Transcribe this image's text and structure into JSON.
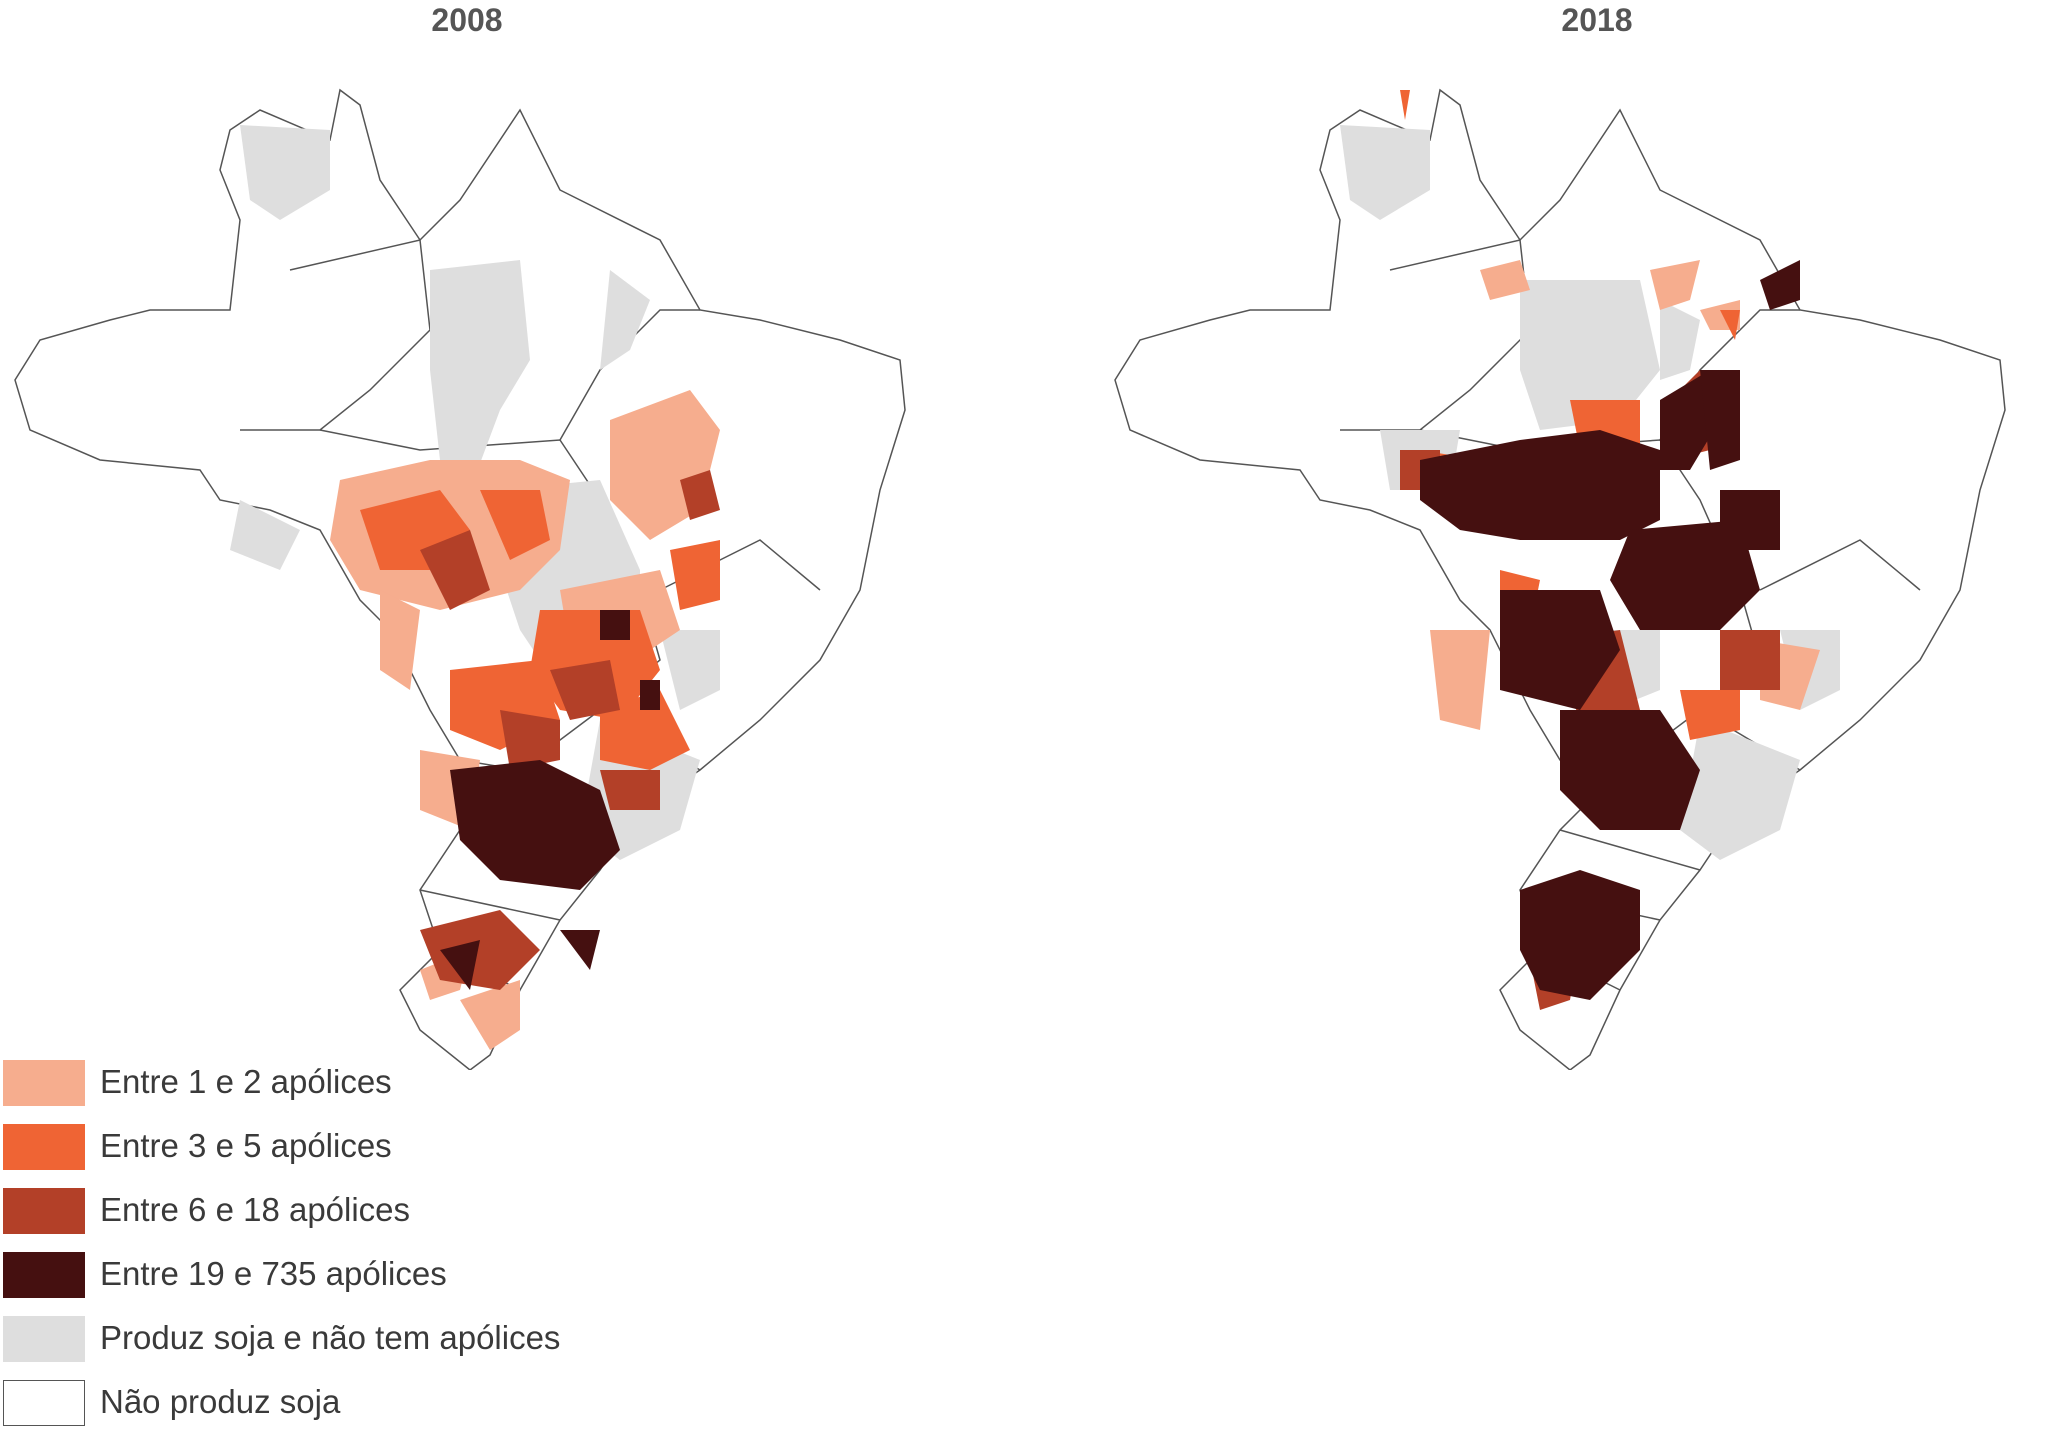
{
  "maps": [
    {
      "title": "2008"
    },
    {
      "title": "2018"
    }
  ],
  "legend": [
    {
      "label": "Entre 1 e 2 apólices",
      "color": "#f6ad8e"
    },
    {
      "label": "Entre 3 e 5 apólices",
      "color": "#ef6434"
    },
    {
      "label": "Entre 6 e 18 apólices",
      "color": "#b34028"
    },
    {
      "label": "Entre 19 e 735 apólices",
      "color": "#451010"
    },
    {
      "label": "Produz soja e não tem apólices",
      "color": "#dedede"
    },
    {
      "label": "Não produz soja",
      "color": "#ffffff"
    }
  ],
  "colors": {
    "border": "#555555",
    "outline": "#555555"
  }
}
